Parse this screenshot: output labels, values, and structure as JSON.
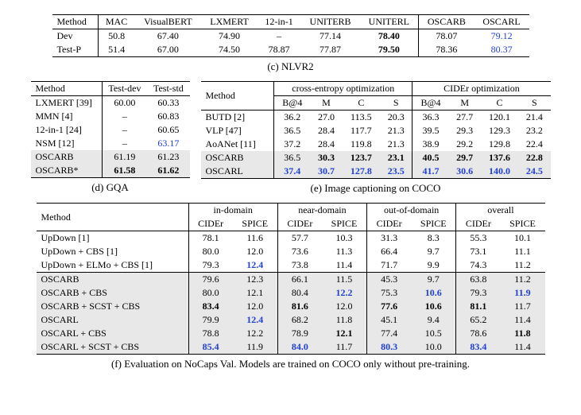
{
  "tableC": {
    "headers": [
      "Method",
      "MAC",
      "VisualBERT",
      "LXMERT",
      "12-in-1",
      "UNITERB",
      "UNITERL",
      "OSCARB",
      "OSCARL"
    ],
    "rows": [
      {
        "label": "Dev",
        "vals": [
          "50.8",
          "67.40",
          "74.90",
          "–",
          "77.14",
          "78.40",
          "78.07",
          "79.12"
        ],
        "bold": [
          0,
          0,
          0,
          0,
          0,
          1,
          0,
          0
        ],
        "blue": [
          0,
          0,
          0,
          0,
          0,
          0,
          0,
          1
        ]
      },
      {
        "label": "Test-P",
        "vals": [
          "51.4",
          "67.00",
          "74.50",
          "78.87",
          "77.87",
          "79.50",
          "78.36",
          "80.37"
        ],
        "bold": [
          0,
          0,
          0,
          0,
          0,
          1,
          0,
          0
        ],
        "blue": [
          0,
          0,
          0,
          0,
          0,
          0,
          0,
          1
        ]
      }
    ],
    "caption": "(c) NLVR2"
  },
  "tableD": {
    "headers": [
      "Method",
      "Test-dev",
      "Test-std"
    ],
    "rows": [
      {
        "label": "LXMERT [39]",
        "vals": [
          "60.00",
          "60.33"
        ],
        "bold": [
          0,
          0
        ],
        "blue": [
          0,
          0
        ],
        "oscar": 0
      },
      {
        "label": "MMN [4]",
        "vals": [
          "–",
          "60.83"
        ],
        "bold": [
          0,
          0
        ],
        "blue": [
          0,
          0
        ],
        "oscar": 0
      },
      {
        "label": "12-in-1 [24]",
        "vals": [
          "–",
          "60.65"
        ],
        "bold": [
          0,
          0
        ],
        "blue": [
          0,
          0
        ],
        "oscar": 0
      },
      {
        "label": "NSM [12]",
        "vals": [
          "–",
          "63.17"
        ],
        "bold": [
          0,
          0
        ],
        "blue": [
          0,
          1
        ],
        "oscar": 0
      },
      {
        "label": "OSCARB",
        "vals": [
          "61.19",
          "61.23"
        ],
        "bold": [
          0,
          0
        ],
        "blue": [
          0,
          0
        ],
        "oscar": 1
      },
      {
        "label": "OSCARB*",
        "vals": [
          "61.58",
          "61.62"
        ],
        "bold": [
          1,
          1
        ],
        "blue": [
          0,
          0
        ],
        "oscar": 1
      }
    ],
    "caption": "(d) GQA"
  },
  "tableE": {
    "toph": [
      "Method",
      "cross-entropy optimization",
      "CIDEr optimization"
    ],
    "subh": [
      "B@4",
      "M",
      "C",
      "S",
      "B@4",
      "M",
      "C",
      "S"
    ],
    "rows": [
      {
        "label": "BUTD [2]",
        "vals": [
          "36.2",
          "27.0",
          "113.5",
          "20.3",
          "36.3",
          "27.7",
          "120.1",
          "21.4"
        ],
        "bold": [
          0,
          0,
          0,
          0,
          0,
          0,
          0,
          0
        ],
        "blue": [
          0,
          0,
          0,
          0,
          0,
          0,
          0,
          0
        ],
        "oscar": 0
      },
      {
        "label": "VLP [47]",
        "vals": [
          "36.5",
          "28.4",
          "117.7",
          "21.3",
          "39.5",
          "29.3",
          "129.3",
          "23.2"
        ],
        "bold": [
          0,
          0,
          0,
          0,
          0,
          0,
          0,
          0
        ],
        "blue": [
          0,
          0,
          0,
          0,
          0,
          0,
          0,
          0
        ],
        "oscar": 0
      },
      {
        "label": "AoANet [11]",
        "vals": [
          "37.2",
          "28.4",
          "119.8",
          "21.3",
          "38.9",
          "29.2",
          "129.8",
          "22.4"
        ],
        "bold": [
          0,
          0,
          0,
          0,
          0,
          0,
          0,
          0
        ],
        "blue": [
          0,
          0,
          0,
          0,
          0,
          0,
          0,
          0
        ],
        "oscar": 0
      },
      {
        "label": "OSCARB",
        "vals": [
          "36.5",
          "30.3",
          "123.7",
          "23.1",
          "40.5",
          "29.7",
          "137.6",
          "22.8"
        ],
        "bold": [
          0,
          1,
          1,
          1,
          1,
          1,
          1,
          1
        ],
        "blue": [
          0,
          0,
          0,
          0,
          0,
          0,
          0,
          0
        ],
        "oscar": 1
      },
      {
        "label": "OSCARL",
        "vals": [
          "37.4",
          "30.7",
          "127.8",
          "23.5",
          "41.7",
          "30.6",
          "140.0",
          "24.5"
        ],
        "bold": [
          1,
          1,
          1,
          1,
          1,
          1,
          1,
          1
        ],
        "blue": [
          1,
          1,
          1,
          1,
          1,
          1,
          1,
          1
        ],
        "oscar": 1
      }
    ],
    "caption": "(e) Image captioning on COCO"
  },
  "tableF": {
    "toph": [
      "Method",
      "in-domain",
      "near-domain",
      "out-of-domain",
      "overall"
    ],
    "subh": [
      "CIDEr",
      "SPICE",
      "CIDEr",
      "SPICE",
      "CIDEr",
      "SPICE",
      "CIDEr",
      "SPICE"
    ],
    "group1": [
      {
        "label": "UpDown [1]",
        "vals": [
          "78.1",
          "11.6",
          "57.7",
          "10.3",
          "31.3",
          "8.3",
          "55.3",
          "10.1"
        ],
        "bold": [
          0,
          0,
          0,
          0,
          0,
          0,
          0,
          0
        ],
        "blue": [
          0,
          0,
          0,
          0,
          0,
          0,
          0,
          0
        ]
      },
      {
        "label": "UpDown + CBS [1]",
        "vals": [
          "80.0",
          "12.0",
          "73.6",
          "11.3",
          "66.4",
          "9.7",
          "73.1",
          "11.1"
        ],
        "bold": [
          0,
          0,
          0,
          0,
          0,
          0,
          0,
          0
        ],
        "blue": [
          0,
          0,
          0,
          0,
          0,
          0,
          0,
          0
        ]
      },
      {
        "label": "UpDown + ELMo + CBS [1]",
        "vals": [
          "79.3",
          "12.4",
          "73.8",
          "11.4",
          "71.7",
          "9.9",
          "74.3",
          "11.2"
        ],
        "bold": [
          0,
          1,
          0,
          0,
          0,
          0,
          0,
          0
        ],
        "blue": [
          0,
          1,
          0,
          0,
          0,
          0,
          0,
          0
        ]
      }
    ],
    "group2": [
      {
        "label": "OSCARB",
        "vals": [
          "79.6",
          "12.3",
          "66.1",
          "11.5",
          "45.3",
          "9.7",
          "63.8",
          "11.2"
        ],
        "bold": [
          0,
          0,
          0,
          0,
          0,
          0,
          0,
          0
        ],
        "blue": [
          0,
          0,
          0,
          0,
          0,
          0,
          0,
          0
        ]
      },
      {
        "label": "OSCARB + CBS",
        "vals": [
          "80.0",
          "12.1",
          "80.4",
          "12.2",
          "75.3",
          "10.6",
          "79.3",
          "11.9"
        ],
        "bold": [
          0,
          0,
          0,
          1,
          0,
          1,
          0,
          1
        ],
        "blue": [
          0,
          0,
          0,
          1,
          0,
          1,
          0,
          1
        ]
      },
      {
        "label": "OSCARB + SCST + CBS",
        "vals": [
          "83.4",
          "12.0",
          "81.6",
          "12.0",
          "77.6",
          "10.6",
          "81.1",
          "11.7"
        ],
        "bold": [
          1,
          0,
          1,
          0,
          1,
          1,
          1,
          0
        ],
        "blue": [
          0,
          0,
          0,
          0,
          0,
          0,
          0,
          0
        ]
      },
      {
        "label": "OSCARL",
        "vals": [
          "79.9",
          "12.4",
          "68.2",
          "11.8",
          "45.1",
          "9.4",
          "65.2",
          "11.4"
        ],
        "bold": [
          0,
          1,
          0,
          0,
          0,
          0,
          0,
          0
        ],
        "blue": [
          0,
          1,
          0,
          0,
          0,
          0,
          0,
          0
        ]
      },
      {
        "label": "OSCARL + CBS",
        "vals": [
          "78.8",
          "12.2",
          "78.9",
          "12.1",
          "77.4",
          "10.5",
          "78.6",
          "11.8"
        ],
        "bold": [
          0,
          0,
          0,
          1,
          0,
          0,
          0,
          1
        ],
        "blue": [
          0,
          0,
          0,
          0,
          0,
          0,
          0,
          0
        ]
      },
      {
        "label": "OSCARL + SCST + CBS",
        "vals": [
          "85.4",
          "11.9",
          "84.0",
          "11.7",
          "80.3",
          "10.0",
          "83.4",
          "11.4"
        ],
        "bold": [
          1,
          0,
          1,
          0,
          1,
          0,
          1,
          0
        ],
        "blue": [
          1,
          0,
          1,
          0,
          1,
          0,
          1,
          0
        ]
      }
    ],
    "caption": "(f) Evaluation on NoCaps Val. Models are trained on COCO only without pre-training."
  }
}
